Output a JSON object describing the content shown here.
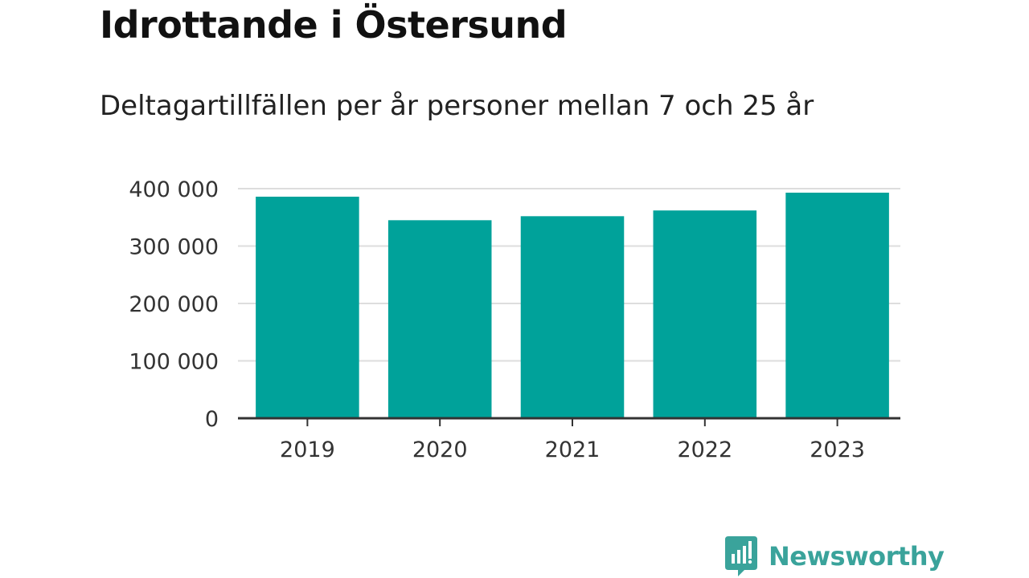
{
  "title": "Idrottande i Östersund",
  "subtitle": "Deltagartillfällen per år personer mellan 7 och 25 år",
  "brand": {
    "name": "Newsworthy",
    "icon": "bar-chart-speech-bubble-icon",
    "color": "#3aa39b"
  },
  "colors": {
    "bar": "#00a29a",
    "grid": "#dddddd",
    "axis": "#333333",
    "text": "#222222"
  },
  "chart_data": {
    "type": "bar",
    "categories": [
      "2019",
      "2020",
      "2021",
      "2022",
      "2023"
    ],
    "values": [
      386000,
      345000,
      352000,
      362000,
      393000
    ],
    "ylim": [
      0,
      400000
    ],
    "yticks": [
      0,
      100000,
      200000,
      300000,
      400000
    ],
    "ytick_labels": [
      "0",
      "100 000",
      "200 000",
      "300 000",
      "400 000"
    ],
    "xlabel": "",
    "ylabel": "",
    "grid": true,
    "legend": "none"
  }
}
